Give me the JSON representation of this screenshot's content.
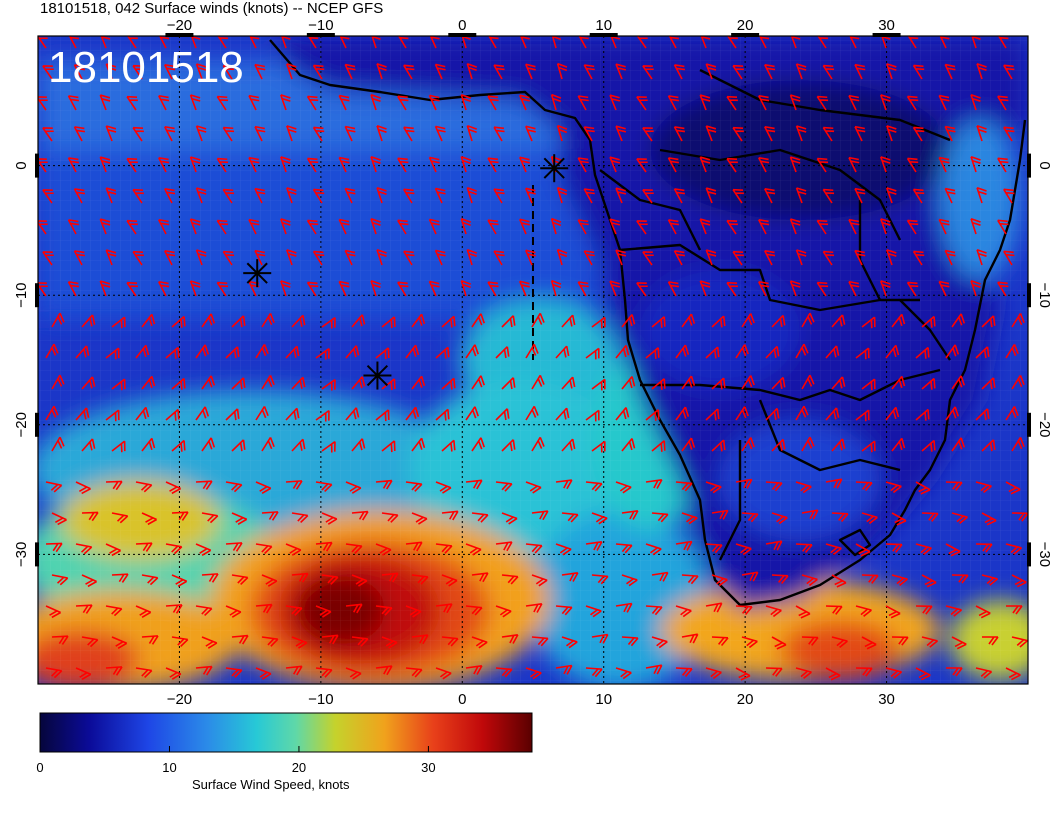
{
  "title": "18101518, 042 Surface winds (knots) -- NCEP GFS",
  "stamp": "18101518",
  "map": {
    "lon_range": [
      -30,
      40
    ],
    "lat_range": [
      -40,
      10
    ],
    "lon_ticks": [
      "-20",
      "-10",
      "0",
      "10",
      "20",
      "30"
    ],
    "lat_ticks": [
      "0",
      "-10",
      "-20",
      "-30"
    ],
    "grid": "dotted",
    "land_overlay": "Africa",
    "wind_barbs_color": "#ff0000",
    "markers": [
      {
        "label": "x-marker-1",
        "lon": 6.5,
        "lat": -0.2
      },
      {
        "label": "x-marker-2",
        "lon": -14.5,
        "lat": -8.3
      },
      {
        "label": "x-marker-3",
        "lon": -6.0,
        "lat": -16.2
      }
    ]
  },
  "colorbar": {
    "label": "Surface Wind Speed, knots",
    "ticks": [
      "0",
      "10",
      "20",
      "30"
    ],
    "range": [
      0,
      38
    ]
  }
}
